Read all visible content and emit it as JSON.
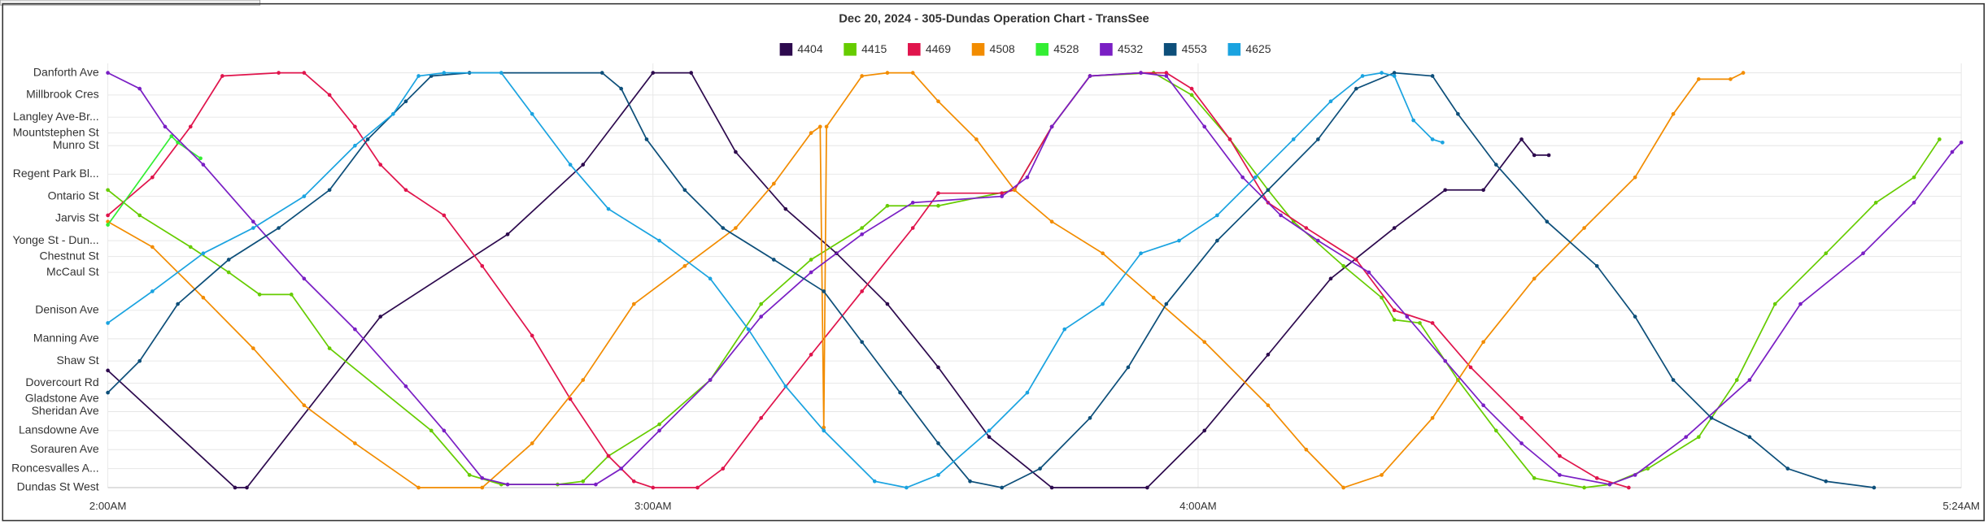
{
  "chart_data": {
    "type": "line",
    "title": "Dec 20, 2024 - 305-Dundas Operation Chart - TransSee",
    "xlim": [
      0,
      204
    ],
    "xticks": [
      {
        "value": 0,
        "label": "2:00AM"
      },
      {
        "value": 60,
        "label": "3:00AM"
      },
      {
        "value": 120,
        "label": "4:00AM"
      },
      {
        "value": 204,
        "label": "5:24AM"
      }
    ],
    "ylim": [
      0,
      13.4
    ],
    "yticks": [
      {
        "value": 0,
        "label": "Dundas St West"
      },
      {
        "value": 0.6,
        "label": "Roncesvalles A..."
      },
      {
        "value": 1.2,
        "label": "Sorauren Ave"
      },
      {
        "value": 1.8,
        "label": "Lansdowne Ave"
      },
      {
        "value": 2.4,
        "label": "Sheridan Ave"
      },
      {
        "value": 2.8,
        "label": "Gladstone Ave"
      },
      {
        "value": 3.3,
        "label": "Dovercourt Rd"
      },
      {
        "value": 4.0,
        "label": "Shaw St"
      },
      {
        "value": 4.7,
        "label": "Manning Ave"
      },
      {
        "value": 5.6,
        "label": "Denison Ave"
      },
      {
        "value": 6.8,
        "label": "McCaul St"
      },
      {
        "value": 7.3,
        "label": "Chestnut St"
      },
      {
        "value": 7.8,
        "label": "Yonge St - Dun..."
      },
      {
        "value": 8.5,
        "label": "Jarvis St"
      },
      {
        "value": 9.2,
        "label": "Ontario St"
      },
      {
        "value": 9.9,
        "label": "Regent Park Bl..."
      },
      {
        "value": 10.8,
        "label": "Munro St"
      },
      {
        "value": 11.2,
        "label": "Mountstephen St"
      },
      {
        "value": 11.7,
        "label": "Langley Ave-Br..."
      },
      {
        "value": 12.4,
        "label": "Millbrook Cres"
      },
      {
        "value": 13.1,
        "label": "Danforth Ave"
      }
    ],
    "grid": true,
    "legend": "top",
    "series": [
      {
        "name": "4404",
        "color": "#2d0a4e",
        "x": [
          0,
          14,
          15.3,
          30,
          44,
          52.3,
          60,
          64.2,
          69.1,
          74.6,
          80.2,
          85.8,
          91.4,
          97,
          103.9,
          114.4,
          120.7,
          127.7,
          134.6,
          141.6,
          147.2,
          151.4,
          155.6,
          157,
          158.6
        ],
        "values": [
          3.7,
          0,
          0,
          5.4,
          8,
          10.2,
          13.1,
          13.1,
          10.6,
          8.8,
          7.4,
          5.8,
          3.8,
          1.6,
          0,
          0,
          1.8,
          4.2,
          6.6,
          8.2,
          9.4,
          9.4,
          11,
          10.5,
          10.5
        ]
      },
      {
        "name": "4415",
        "color": "#66cc00",
        "x": [
          0,
          3.5,
          9.1,
          13.3,
          16.7,
          20.2,
          24.4,
          35.6,
          39.8,
          43.3,
          49.5,
          52.3,
          55.1,
          60.7,
          66.3,
          71.9,
          77.4,
          83,
          85.8,
          91.4,
          99.8,
          103.9,
          108.1,
          115.1,
          119.3,
          123.5,
          127.7,
          130.5,
          136,
          140.2,
          141.6,
          144.4,
          148.6,
          152.8,
          157,
          162.5,
          165.3,
          169.5,
          175.1,
          179.3,
          183.5,
          189.1,
          194.6,
          198.8,
          201.6
        ],
        "values": [
          9.4,
          8.6,
          7.6,
          6.8,
          6.1,
          6.1,
          4.4,
          1.8,
          0.4,
          0.1,
          0.1,
          0.2,
          1,
          2,
          3.4,
          5.8,
          7.2,
          8.2,
          8.9,
          8.9,
          9.4,
          11.4,
          13,
          13.1,
          12.4,
          11,
          9.4,
          8.4,
          7,
          6,
          5.3,
          5.2,
          3.4,
          1.8,
          0.3,
          0,
          0.1,
          0.6,
          1.6,
          3.4,
          5.8,
          7.4,
          9,
          9.8,
          11
        ]
      },
      {
        "name": "4469",
        "color": "#e0144c",
        "x": [
          0,
          4.9,
          9.1,
          12.6,
          18.8,
          21.6,
          24.4,
          27.2,
          30,
          32.8,
          37,
          41.2,
          46.7,
          50.9,
          55.1,
          57.9,
          60,
          64.9,
          67.7,
          71.9,
          77.4,
          83,
          88.6,
          91.4,
          98.4,
          99.8,
          103.9,
          108.1,
          113.7,
          116.5,
          119.3,
          123.5,
          127.7,
          131.9,
          137.4,
          141.6,
          145.8,
          150,
          155.6,
          159.8,
          163.9,
          167.4
        ],
        "values": [
          8.6,
          9.8,
          11.4,
          13,
          13.1,
          13.1,
          12.4,
          11.4,
          10.2,
          9.4,
          8.6,
          7,
          4.8,
          2.8,
          1,
          0.2,
          0,
          0,
          0.6,
          2.2,
          4.2,
          6.2,
          8.2,
          9.3,
          9.3,
          9.4,
          11.4,
          13,
          13.1,
          13.1,
          12.6,
          11,
          9,
          8.2,
          7.2,
          5.6,
          5.2,
          3.8,
          2.2,
          1,
          0.3,
          0
        ]
      },
      {
        "name": "4508",
        "color": "#f28c00",
        "x": [
          0,
          4.9,
          10.5,
          16,
          21.6,
          27.2,
          34.2,
          41.2,
          46.7,
          52.3,
          57.9,
          63.5,
          69.1,
          73.3,
          77.4,
          78.4,
          78.8,
          79.1,
          83,
          85.8,
          88.6,
          91.4,
          95.6,
          99.8,
          103.9,
          109.5,
          115.1,
          120.7,
          127.7,
          131.9,
          136,
          140.2,
          145.8,
          151.4,
          157,
          162.5,
          168.1,
          172.3,
          175.1,
          178.6,
          180
        ],
        "values": [
          8.4,
          7.6,
          6,
          4.4,
          2.6,
          1.4,
          0,
          0,
          1.4,
          3.4,
          5.8,
          7,
          8.2,
          9.6,
          11.2,
          11.4,
          1.9,
          11.4,
          13,
          13.1,
          13.1,
          12.2,
          11,
          9.4,
          8.4,
          7.4,
          6,
          4.6,
          2.6,
          1.2,
          0,
          0.4,
          2.2,
          4.6,
          6.6,
          8.2,
          9.8,
          11.8,
          12.9,
          12.9,
          13.1
        ]
      },
      {
        "name": "4528",
        "color": "#33ee33",
        "x": [
          0,
          7,
          7.7,
          10.2
        ],
        "values": [
          8.3,
          11.1,
          10.9,
          10.4
        ]
      },
      {
        "name": "4532",
        "color": "#7a1fc4",
        "x": [
          0,
          3.5,
          6.3,
          10.5,
          16,
          21.6,
          27.2,
          32.8,
          37,
          41.2,
          44,
          53.7,
          56.5,
          60.7,
          66.3,
          71.9,
          77.4,
          83,
          88.6,
          98.4,
          101.2,
          103.9,
          108.1,
          113.7,
          116.5,
          120.7,
          124.9,
          129.1,
          133.2,
          138.8,
          143,
          147.2,
          151.4,
          155.6,
          159.8,
          165.3,
          168.1,
          173.7,
          180.7,
          186.3,
          193.2,
          198.8,
          203,
          204
        ],
        "values": [
          13.1,
          12.6,
          11.4,
          10.2,
          8.4,
          6.6,
          5,
          3.2,
          1.8,
          0.3,
          0.1,
          0.1,
          0.6,
          1.8,
          3.4,
          5.4,
          6.8,
          8,
          9,
          9.2,
          9.8,
          11.4,
          13,
          13.1,
          13,
          11.4,
          9.8,
          8.6,
          7.8,
          6.8,
          5.4,
          4,
          2.6,
          1.4,
          0.4,
          0.1,
          0.4,
          1.6,
          3.4,
          5.8,
          7.4,
          9,
          10.6,
          10.9
        ]
      },
      {
        "name": "4553",
        "color": "#0d4f7a",
        "x": [
          0,
          3.5,
          7.7,
          13.3,
          18.8,
          24.4,
          28.6,
          32.8,
          35.6,
          39.8,
          54.4,
          56.5,
          59.3,
          63.5,
          67.7,
          73.3,
          78.8,
          83,
          87.2,
          91.4,
          94.9,
          98.4,
          102.6,
          108.1,
          112.3,
          116.5,
          122.1,
          127.7,
          133.2,
          137.4,
          141.6,
          145.8,
          148.6,
          152.8,
          158.4,
          163.9,
          168.1,
          172.3,
          176.5,
          180.7,
          184.9,
          189.1,
          194.4
        ],
        "values": [
          3,
          4,
          5.8,
          7.2,
          8.2,
          9.4,
          11,
          12.2,
          13,
          13.1,
          13.1,
          12.6,
          11,
          9.4,
          8.2,
          7.2,
          6.2,
          4.6,
          3,
          1.4,
          0.2,
          0,
          0.6,
          2.2,
          3.8,
          5.8,
          7.8,
          9.4,
          11,
          12.6,
          13.1,
          13,
          11.8,
          10.2,
          8.4,
          7,
          5.4,
          3.4,
          2.2,
          1.6,
          0.6,
          0.2,
          0
        ]
      },
      {
        "name": "4625",
        "color": "#1aa3e0",
        "x": [
          0,
          4.9,
          10.5,
          16,
          21.6,
          27.2,
          31.4,
          34.2,
          37,
          43.3,
          46.7,
          50.9,
          55.1,
          60.7,
          66.3,
          70.5,
          74.6,
          78.8,
          84.4,
          87.9,
          91.4,
          97,
          101.2,
          105.3,
          109.5,
          113.7,
          117.9,
          122.1,
          126.3,
          130.5,
          134.6,
          138.1,
          140.2,
          141.6,
          143.7,
          145.8,
          146.9
        ],
        "values": [
          5.2,
          6.2,
          7.4,
          8.2,
          9.2,
          10.8,
          11.8,
          13,
          13.1,
          13.1,
          11.8,
          10.2,
          8.8,
          7.8,
          6.6,
          5,
          3.2,
          1.8,
          0.2,
          0,
          0.4,
          1.8,
          3,
          5,
          5.8,
          7.4,
          7.8,
          8.6,
          9.8,
          11,
          12.2,
          13,
          13.1,
          13,
          11.6,
          11,
          10.9
        ]
      }
    ]
  }
}
